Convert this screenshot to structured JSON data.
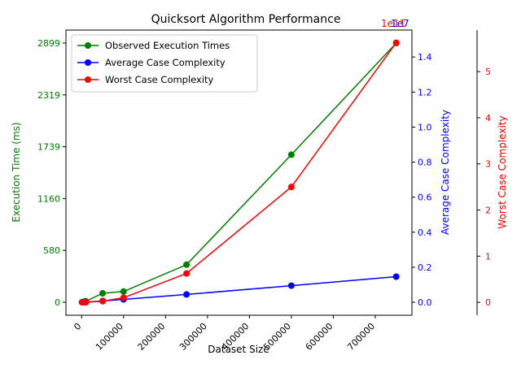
{
  "chart_data": {
    "type": "line",
    "title": "Quicksort Algorithm Performance",
    "xlabel": "Dataset Size",
    "x": [
      1000,
      5000,
      10000,
      50000,
      100000,
      250000,
      500000,
      750000
    ],
    "xlim": [
      -37450,
      787450
    ],
    "xticks": [
      0,
      100000,
      200000,
      300000,
      400000,
      500000,
      600000,
      700000
    ],
    "xtick_labels": [
      "0",
      "100000",
      "200000",
      "300000",
      "400000",
      "500000",
      "600000",
      "700000"
    ],
    "axes": {
      "left": {
        "label": "Execution Time (ms)",
        "color": "#008000",
        "ylim": [
          -145,
          3044
        ],
        "ticks": [
          0,
          580,
          1160,
          1739,
          2319,
          2899
        ],
        "tick_labels": [
          "0",
          "580",
          "1160",
          "1739",
          "2319",
          "2899"
        ]
      },
      "right1": {
        "label": "Average Case Complexity",
        "color": "#0000ff",
        "ylim": [
          -0.074,
          1.554
        ],
        "ticks": [
          0.0,
          0.2,
          0.4,
          0.6,
          0.8,
          1.0,
          1.2,
          1.4
        ],
        "tick_labels": [
          "0.0",
          "0.2",
          "0.4",
          "0.6",
          "0.8",
          "1.0",
          "1.2",
          "1.4"
        ]
      },
      "right2": {
        "label": "Worst Case Complexity",
        "color": "#ff0000",
        "ylim": [
          -0.28,
          5.9
        ],
        "ticks": [
          0,
          1,
          2,
          3,
          4,
          5
        ],
        "tick_labels": [
          "0",
          "1",
          "2",
          "3",
          "4",
          "5"
        ]
      }
    },
    "offset_labels": [
      {
        "text": "1e11",
        "color": "#ff0000"
      },
      {
        "text": "1e7",
        "color": "#0000ff"
      }
    ],
    "series": [
      {
        "name": "Observed Execution Times",
        "color": "#008000",
        "axis": "left",
        "values": [
          1,
          6,
          11,
          100,
          120,
          420,
          1650,
          2899
        ]
      },
      {
        "name": "Average Case Complexity",
        "color": "#0000ff",
        "axis": "right1",
        "values": [
          0.0001,
          0.0006,
          0.00133,
          0.0078,
          0.0166,
          0.0449,
          0.0946,
          0.1463
        ]
      },
      {
        "name": "Worst Case Complexity",
        "color": "#ff0000",
        "axis": "right2",
        "values": [
          1e-05,
          0.00025,
          0.001,
          0.025,
          0.1,
          0.625,
          2.5,
          5.625
        ]
      }
    ],
    "legend": "top-left",
    "grid": false
  }
}
